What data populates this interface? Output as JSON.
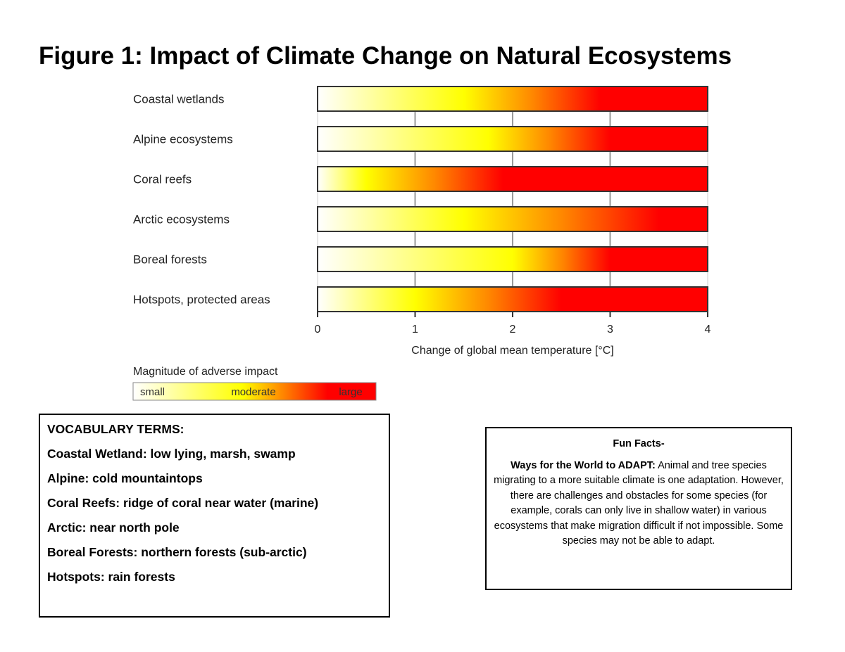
{
  "title": "Figure 1: Impact of Climate Change on Natural Ecosystems",
  "chart_data": {
    "type": "heatmap",
    "xlabel": "Change of global mean temperature [°C]",
    "xlim": [
      0,
      4
    ],
    "xticks": [
      "0",
      "1",
      "2",
      "3",
      "4"
    ],
    "grid": true,
    "colors": {
      "small": "#ffffff",
      "moderate": "#ffff00",
      "large": "#ff0000"
    },
    "categories": [
      "Coastal wetlands",
      "Alpine ecosystems",
      "Coral reefs",
      "Arctic ecosystems",
      "Boreal forests",
      "Hotspots, protected areas"
    ],
    "series": [
      {
        "yellow_peak": 1.5,
        "red_from": 2.9
      },
      {
        "yellow_peak": 1.75,
        "red_from": 3.0
      },
      {
        "yellow_peak": 0.5,
        "red_from": 1.9
      },
      {
        "yellow_peak": 1.5,
        "red_from": 3.5
      },
      {
        "yellow_peak": 2.0,
        "red_from": 3.0
      },
      {
        "yellow_peak": 1.0,
        "red_from": 2.5
      }
    ],
    "legend": {
      "title": "Magnitude of adverse impact",
      "labels": [
        "small",
        "moderate",
        "large"
      ]
    }
  },
  "vocab": {
    "heading": "VOCABULARY TERMS:",
    "items": [
      "Coastal Wetland: low lying, marsh, swamp",
      "Alpine: cold mountaintops",
      "Coral Reefs: ridge of coral near water (marine)",
      "Arctic: near north pole",
      "Boreal Forests: northern forests (sub-arctic)",
      "Hotspots: rain forests"
    ]
  },
  "fun": {
    "heading": "Fun Facts-",
    "lead": "Ways for the World to ADAPT:",
    "text": " Animal and tree species migrating to a more suitable climate is one adaptation. However, there are challenges and obstacles for some species (for example, corals can only live in shallow water) in various ecosystems that make migration difficult if not impossible. Some species may not be able to adapt."
  }
}
